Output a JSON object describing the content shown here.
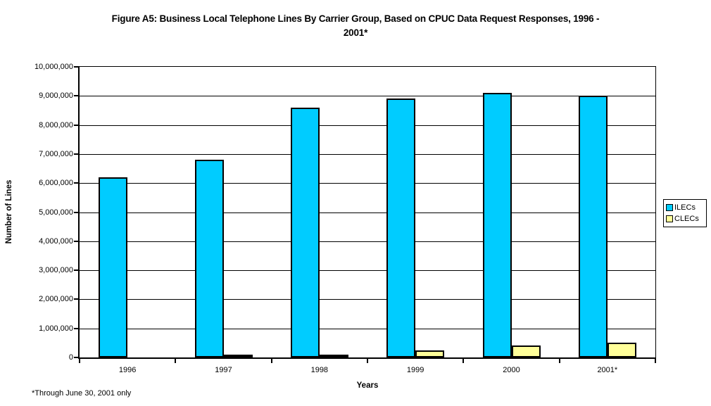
{
  "title": {
    "full": "Figure A5: Business Local Telephone Lines By Carrier Group, Based on CPUC Data Request Responses, 1996-2001*",
    "lines": [
      "Figure A5: Business Local Telephone Lines By Carrier Group, Based on CPUC Data Request Responses, 1996 -",
      "2001*"
    ]
  },
  "footnote": "*Through June 30, 2001 only",
  "chart_data": {
    "type": "bar",
    "title": "Figure A5: Business Local Telephone Lines By Carrier Group, Based on CPUC Data Request Responses, 1996-2001*",
    "categories": [
      "1996",
      "1997",
      "1998",
      "1999",
      "2000",
      "2001*"
    ],
    "series": [
      {
        "name": "ILECs",
        "color": "#00CCFF",
        "values": [
          6200000,
          6800000,
          8600000,
          8900000,
          9100000,
          9000000
        ]
      },
      {
        "name": "CLECs",
        "color": "#FFFF99",
        "values": [
          0,
          50000,
          60000,
          250000,
          400000,
          520000
        ]
      }
    ],
    "xlabel": "Years",
    "ylabel": "Number of Lines",
    "ylim": [
      0,
      10000000
    ],
    "ytick_step": 1000000,
    "ytick_labels": [
      "0",
      "1,000,000",
      "2,000,000",
      "3,000,000",
      "4,000,000",
      "5,000,000",
      "6,000,000",
      "7,000,000",
      "8,000,000",
      "9,000,000",
      "10,000,000"
    ],
    "grid": true,
    "legend_position": "right",
    "bar_border_color": "#000000"
  }
}
